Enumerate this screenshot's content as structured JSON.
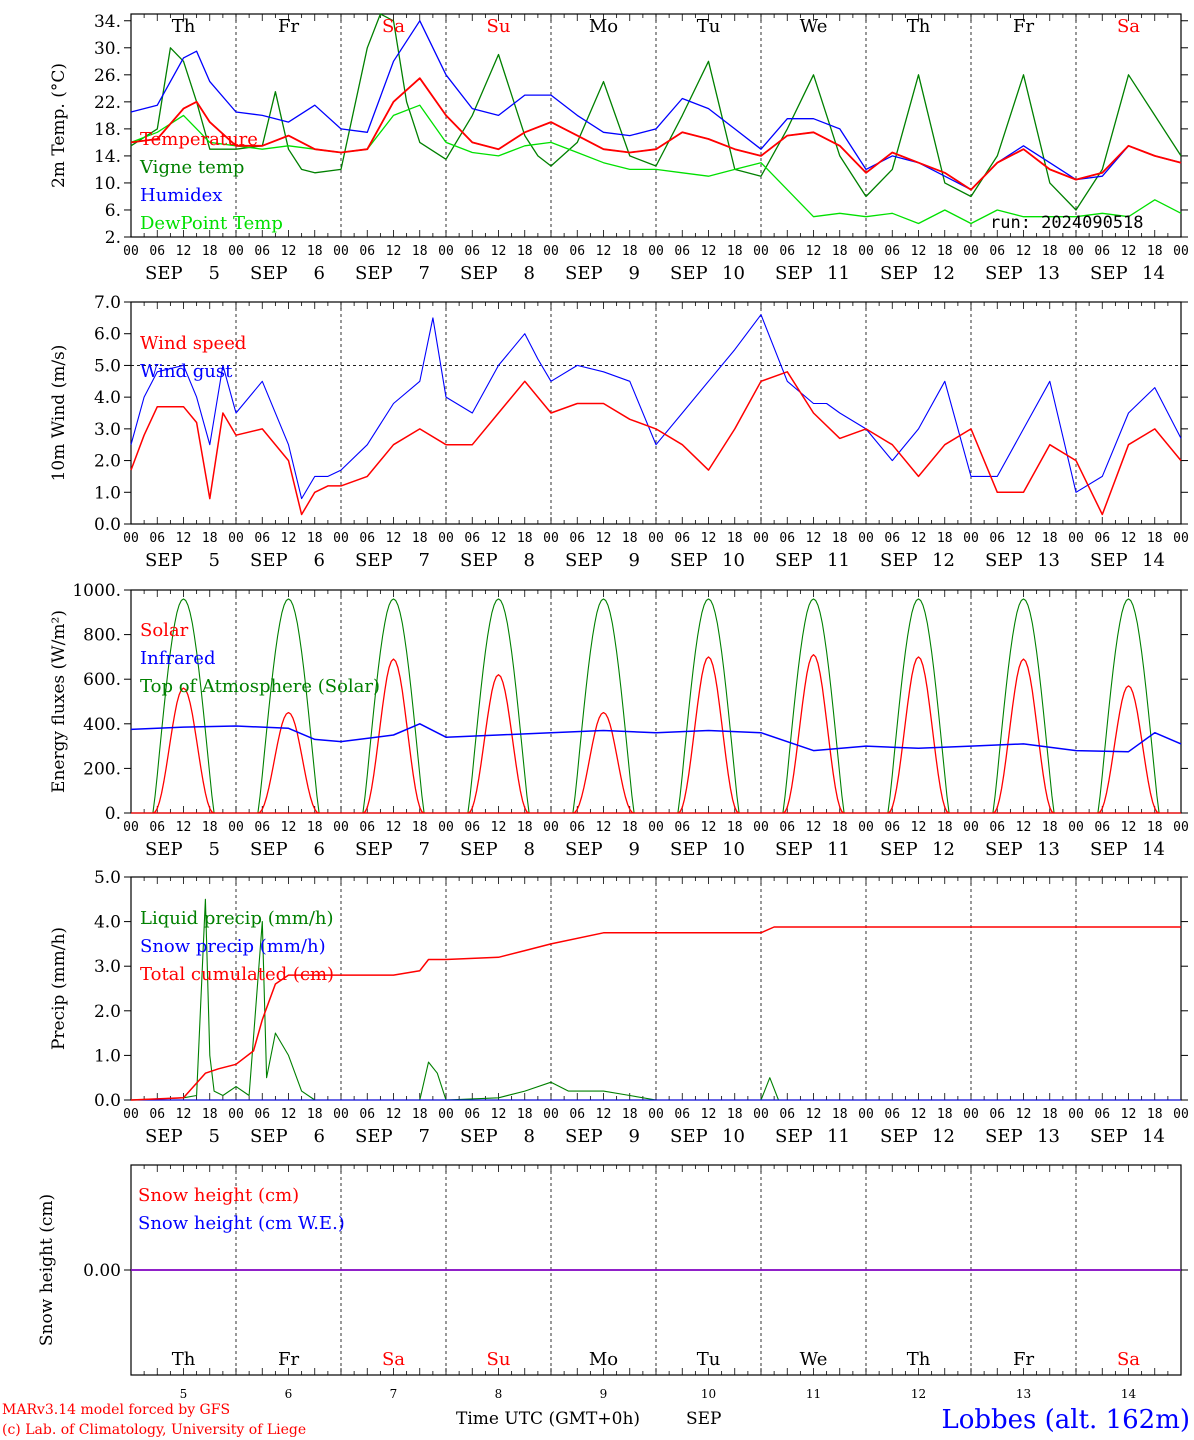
{
  "colors": {
    "red": "#ff0000",
    "green": "#008000",
    "blue": "#0000ff",
    "lightgreen": "#00e000",
    "purple": "#8000c0",
    "frame": "#000000"
  },
  "days_of_week": [
    "Th",
    "Fr",
    "Sa",
    "Su",
    "Mo",
    "Tu",
    "We",
    "Th",
    "Fr",
    "Sa"
  ],
  "weekend_flags": [
    false,
    false,
    true,
    true,
    false,
    false,
    false,
    false,
    false,
    true
  ],
  "month_label": "SEP",
  "day_numbers": [
    "5",
    "6",
    "7",
    "8",
    "9",
    "10",
    "11",
    "12",
    "13",
    "14"
  ],
  "hour_ticks": [
    "00",
    "06",
    "12",
    "18"
  ],
  "run_label": "run: 2024090518",
  "footer": {
    "model": "MARv3.14 model forced by GFS",
    "lab": "(c) Lab. of Climatology, University of Liege",
    "xlabel": "Time UTC (GMT+0h)",
    "xlabel_month": "SEP",
    "station": "Lobbes (alt. 162m)"
  },
  "chart_data": [
    {
      "type": "line",
      "ylabel": "2m Temp. (°C)",
      "ylim": [
        2,
        35
      ],
      "yticks": [
        "2.",
        "6.",
        "10.",
        "14.",
        "18.",
        "22.",
        "26.",
        "30.",
        "34."
      ],
      "x_unit": "hours since 2024-09-05 00 UTC",
      "series": [
        {
          "name": "Temperature",
          "color": "red",
          "x": [
            0,
            6,
            12,
            15,
            18,
            24,
            30,
            36,
            42,
            48,
            54,
            60,
            66,
            72,
            78,
            84,
            90,
            96,
            102,
            108,
            114,
            120,
            126,
            132,
            138,
            144,
            150,
            156,
            162,
            168,
            174,
            180,
            186,
            192,
            198,
            204,
            210,
            216,
            222,
            228,
            234,
            240
          ],
          "y": [
            16,
            16.5,
            21,
            22,
            19,
            15.5,
            15.5,
            17,
            15,
            14.5,
            15,
            22,
            25.5,
            20,
            16,
            15,
            17.5,
            19,
            17,
            15,
            14.5,
            15,
            17.5,
            16.5,
            15,
            14,
            17,
            17.5,
            15.5,
            11.5,
            14.5,
            13,
            11.5,
            9,
            13,
            15,
            12,
            10.5,
            11.5,
            15.5,
            14,
            13
          ]
        },
        {
          "name": "Vigne temp",
          "color": "green",
          "x": [
            0,
            6,
            9,
            12,
            15,
            18,
            24,
            30,
            33,
            36,
            39,
            42,
            48,
            54,
            57,
            60,
            63,
            66,
            72,
            78,
            84,
            90,
            93,
            96,
            102,
            108,
            114,
            120,
            126,
            132,
            138,
            144,
            150,
            156,
            162,
            168,
            174,
            180,
            186,
            192,
            198,
            204,
            210,
            216,
            222,
            228,
            234,
            240
          ],
          "y": [
            15.5,
            18,
            30,
            28,
            22,
            15,
            15,
            15.5,
            23.5,
            15,
            12,
            11.5,
            12,
            30,
            35,
            34,
            22,
            16,
            13.5,
            20,
            29,
            17,
            14,
            12.5,
            16,
            25,
            14,
            12.5,
            20,
            28,
            12,
            11,
            18,
            26,
            14,
            8,
            12,
            26,
            10,
            8,
            14,
            26,
            10,
            6,
            12,
            26,
            20,
            14
          ]
        },
        {
          "name": "Humidex",
          "color": "blue",
          "x": [
            0,
            6,
            12,
            15,
            18,
            24,
            30,
            36,
            42,
            48,
            54,
            60,
            66,
            72,
            78,
            84,
            90,
            96,
            102,
            108,
            114,
            120,
            126,
            132,
            138,
            144,
            150,
            156,
            162,
            168,
            174,
            180,
            186,
            192,
            198,
            204,
            210,
            216,
            222,
            228,
            234,
            240
          ],
          "y": [
            20.5,
            21.5,
            28.5,
            29.5,
            25,
            20.5,
            20,
            19,
            21.5,
            18,
            17.5,
            28,
            34,
            26,
            21,
            20,
            23,
            23,
            20,
            17.5,
            17,
            18,
            22.5,
            21,
            18,
            15,
            19.5,
            19.5,
            18,
            12,
            14,
            13,
            11,
            9,
            13,
            15.5,
            13,
            10.5,
            11,
            15.5,
            14,
            13
          ]
        },
        {
          "name": "DewPoint Temp",
          "color": "lightgreen",
          "x": [
            0,
            6,
            12,
            18,
            24,
            30,
            36,
            42,
            48,
            54,
            60,
            66,
            72,
            78,
            84,
            90,
            96,
            102,
            108,
            114,
            120,
            126,
            132,
            138,
            144,
            150,
            156,
            162,
            168,
            174,
            180,
            186,
            192,
            198,
            204,
            210,
            216,
            222,
            228,
            234,
            240
          ],
          "y": [
            16,
            17.5,
            20,
            16,
            15.5,
            15,
            15.5,
            15,
            14.5,
            15,
            20,
            21.5,
            16,
            14.5,
            14,
            15.5,
            16,
            14.5,
            13,
            12,
            12,
            11.5,
            11,
            12,
            13,
            9,
            5,
            5.5,
            5,
            5.5,
            4,
            6,
            4,
            6,
            5,
            5,
            5,
            5.5,
            5,
            7.5,
            5.5
          ]
        }
      ]
    },
    {
      "type": "line",
      "ylabel": "10m Wind (m/s)",
      "ylim": [
        0,
        7
      ],
      "yticks": [
        "0.0",
        "1.0",
        "2.0",
        "3.0",
        "4.0",
        "5.0",
        "6.0",
        "7.0"
      ],
      "ref_line": 5,
      "series": [
        {
          "name": "Wind speed",
          "color": "red",
          "x": [
            0,
            3,
            6,
            12,
            15,
            18,
            21,
            24,
            30,
            36,
            39,
            42,
            45,
            48,
            54,
            60,
            66,
            72,
            78,
            84,
            90,
            96,
            102,
            108,
            114,
            120,
            126,
            132,
            138,
            144,
            150,
            156,
            162,
            168,
            174,
            180,
            186,
            192,
            198,
            204,
            210,
            216,
            222,
            228,
            234,
            240
          ],
          "y": [
            1.7,
            2.8,
            3.7,
            3.7,
            3.2,
            0.8,
            3.5,
            2.8,
            3,
            2,
            0.3,
            1,
            1.2,
            1.2,
            1.5,
            2.5,
            3,
            2.5,
            2.5,
            3.5,
            4.5,
            3.5,
            3.8,
            3.8,
            3.3,
            3,
            2.5,
            1.7,
            3,
            4.5,
            4.8,
            3.5,
            2.7,
            3,
            2.5,
            1.5,
            2.5,
            3,
            1,
            1,
            2.5,
            2,
            0.3,
            2.5,
            3,
            2
          ]
        },
        {
          "name": "Wind gust",
          "color": "blue",
          "x": [
            0,
            3,
            6,
            12,
            15,
            18,
            21,
            24,
            30,
            36,
            39,
            42,
            45,
            48,
            54,
            60,
            66,
            69,
            72,
            78,
            84,
            90,
            93,
            96,
            102,
            108,
            114,
            120,
            126,
            132,
            138,
            144,
            150,
            156,
            159,
            162,
            168,
            174,
            180,
            186,
            192,
            198,
            204,
            210,
            216,
            222,
            228,
            234,
            240
          ],
          "y": [
            2.5,
            4,
            4.8,
            5,
            4,
            2.5,
            5,
            3.5,
            4.5,
            2.5,
            0.8,
            1.5,
            1.5,
            1.7,
            2.5,
            3.8,
            4.5,
            6.5,
            4,
            3.5,
            5,
            6,
            5.2,
            4.5,
            5,
            4.8,
            4.5,
            2.5,
            3.5,
            4.5,
            5.5,
            6.6,
            4.5,
            3.8,
            3.8,
            3.5,
            3,
            2,
            3,
            4.5,
            1.5,
            1.5,
            3,
            4.5,
            1,
            1.5,
            3.5,
            4.3,
            2.7
          ]
        }
      ]
    },
    {
      "type": "line",
      "ylabel": "Energy fluxes (W/m²)",
      "ylim": [
        0,
        1000
      ],
      "yticks": [
        "0.",
        "200.",
        "400.",
        "600.",
        "800.",
        "1000."
      ],
      "series": [
        {
          "name": "Solar",
          "color": "red",
          "peaks": [
            560,
            450,
            690,
            620,
            450,
            700,
            710,
            700,
            690,
            570
          ]
        },
        {
          "name": "Infrared",
          "color": "blue",
          "x": [
            0,
            12,
            24,
            36,
            42,
            48,
            60,
            66,
            72,
            84,
            96,
            108,
            120,
            132,
            144,
            156,
            168,
            180,
            192,
            204,
            216,
            228,
            234,
            240
          ],
          "y": [
            375,
            385,
            390,
            380,
            330,
            320,
            350,
            400,
            340,
            350,
            360,
            370,
            360,
            370,
            360,
            280,
            300,
            290,
            300,
            310,
            280,
            275,
            360,
            310
          ]
        },
        {
          "name": "Top of Atmosphere (Solar)",
          "color": "green",
          "peak": 960
        }
      ]
    },
    {
      "type": "line",
      "ylabel": "Precip (mm/h)",
      "ylim": [
        0,
        5
      ],
      "yticks": [
        "0.0",
        "1.0",
        "2.0",
        "3.0",
        "4.0",
        "5.0"
      ],
      "series": [
        {
          "name": "Liquid precip (mm/h)",
          "color": "green",
          "x": [
            0,
            12,
            15,
            17,
            18,
            19,
            21,
            24,
            27,
            30,
            31,
            33,
            36,
            39,
            42,
            66,
            68,
            70,
            72,
            84,
            90,
            96,
            100,
            108,
            114,
            120,
            144,
            146,
            148,
            240
          ],
          "y": [
            0,
            0.05,
            0.1,
            4.5,
            1,
            0.2,
            0.1,
            0.3,
            0.1,
            4,
            0.5,
            1.5,
            1,
            0.2,
            0,
            0,
            0.85,
            0.6,
            0,
            0.05,
            0.2,
            0.4,
            0.2,
            0.2,
            0.1,
            0,
            0,
            0.5,
            0,
            0
          ]
        },
        {
          "name": "Snow precip (mm/h)",
          "color": "blue",
          "x": [
            0,
            240
          ],
          "y": [
            0,
            0
          ]
        },
        {
          "name": "Total cumulated (cm)",
          "color": "red",
          "x": [
            0,
            12,
            17,
            20,
            24,
            28,
            30,
            33,
            36,
            48,
            60,
            66,
            68,
            72,
            84,
            90,
            96,
            108,
            120,
            144,
            147,
            240
          ],
          "y": [
            0,
            0.05,
            0.6,
            0.7,
            0.8,
            1.1,
            1.8,
            2.6,
            2.8,
            2.8,
            2.8,
            2.9,
            3.15,
            3.15,
            3.2,
            3.35,
            3.5,
            3.75,
            3.75,
            3.75,
            3.88,
            3.88
          ]
        }
      ]
    },
    {
      "type": "line",
      "ylabel": "Snow height (cm)",
      "ytick": "0.00",
      "series": [
        {
          "name": "Snow height (cm)",
          "color": "red",
          "value": 0
        },
        {
          "name": "Snow height (cm W.E.)",
          "color": "blue",
          "value": 0
        }
      ]
    }
  ]
}
